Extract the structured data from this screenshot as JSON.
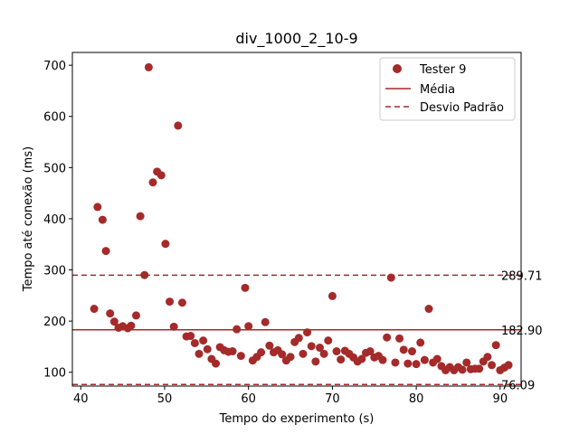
{
  "chart_data": {
    "type": "scatter",
    "title": "div_1000_2_10-9",
    "xlabel": "Tempo do experimento (s)",
    "ylabel": "Tempo até conexão (ms)",
    "xlim": [
      39,
      92.5
    ],
    "ylim": [
      73,
      725
    ],
    "xticks": [
      40,
      50,
      60,
      70,
      80,
      90
    ],
    "yticks": [
      100,
      200,
      300,
      400,
      500,
      600,
      700
    ],
    "grid": false,
    "legend_position": "top-right",
    "series": [
      {
        "name": "Tester 9",
        "color": "#a52a2a",
        "points": [
          [
            41.6,
            224
          ],
          [
            42.0,
            423
          ],
          [
            42.6,
            398
          ],
          [
            43.0,
            337
          ],
          [
            43.5,
            215
          ],
          [
            44.0,
            199
          ],
          [
            44.5,
            187
          ],
          [
            45.0,
            190
          ],
          [
            45.6,
            186
          ],
          [
            46.0,
            191
          ],
          [
            46.6,
            211
          ],
          [
            47.1,
            405
          ],
          [
            47.6,
            290
          ],
          [
            48.1,
            696
          ],
          [
            48.6,
            471
          ],
          [
            49.1,
            492
          ],
          [
            49.6,
            485
          ],
          [
            50.1,
            351
          ],
          [
            50.6,
            238
          ],
          [
            51.1,
            189
          ],
          [
            51.6,
            582
          ],
          [
            52.1,
            236
          ],
          [
            52.6,
            170
          ],
          [
            53.1,
            171
          ],
          [
            53.6,
            157
          ],
          [
            54.1,
            136
          ],
          [
            54.6,
            162
          ],
          [
            55.1,
            145
          ],
          [
            55.6,
            126
          ],
          [
            56.1,
            117
          ],
          [
            56.6,
            149
          ],
          [
            57.1,
            143
          ],
          [
            57.6,
            140
          ],
          [
            58.1,
            141
          ],
          [
            58.6,
            184
          ],
          [
            59.1,
            132
          ],
          [
            59.6,
            265
          ],
          [
            60.0,
            190
          ],
          [
            60.5,
            123
          ],
          [
            61.0,
            130
          ],
          [
            61.5,
            139
          ],
          [
            62.0,
            198
          ],
          [
            62.5,
            152
          ],
          [
            63.0,
            139
          ],
          [
            63.5,
            143
          ],
          [
            64.0,
            135
          ],
          [
            64.5,
            123
          ],
          [
            65.0,
            130
          ],
          [
            65.5,
            159
          ],
          [
            66.0,
            167
          ],
          [
            66.5,
            136
          ],
          [
            67.0,
            178
          ],
          [
            67.5,
            151
          ],
          [
            68.0,
            121
          ],
          [
            68.5,
            148
          ],
          [
            69.0,
            136
          ],
          [
            69.5,
            162
          ],
          [
            70.0,
            249
          ],
          [
            70.5,
            141
          ],
          [
            71.0,
            125
          ],
          [
            71.5,
            142
          ],
          [
            72.0,
            136
          ],
          [
            72.5,
            129
          ],
          [
            73.0,
            121
          ],
          [
            73.5,
            126
          ],
          [
            74.0,
            138
          ],
          [
            74.5,
            141
          ],
          [
            75.0,
            129
          ],
          [
            75.5,
            132
          ],
          [
            76.0,
            124
          ],
          [
            76.5,
            168
          ],
          [
            77.0,
            285
          ],
          [
            77.5,
            119
          ],
          [
            78.0,
            166
          ],
          [
            78.5,
            144
          ],
          [
            79.0,
            117
          ],
          [
            79.5,
            141
          ],
          [
            80.0,
            116
          ],
          [
            80.5,
            158
          ],
          [
            81.0,
            124
          ],
          [
            81.5,
            224
          ],
          [
            82.0,
            119
          ],
          [
            82.5,
            126
          ],
          [
            83.0,
            112
          ],
          [
            83.5,
            104
          ],
          [
            84.0,
            110
          ],
          [
            84.5,
            104
          ],
          [
            85.0,
            110
          ],
          [
            85.5,
            105
          ],
          [
            86.0,
            119
          ],
          [
            86.5,
            106
          ],
          [
            87.0,
            107
          ],
          [
            87.5,
            107
          ],
          [
            88.0,
            121
          ],
          [
            88.5,
            130
          ],
          [
            89.0,
            114
          ],
          [
            89.5,
            153
          ],
          [
            90.0,
            104
          ],
          [
            90.5,
            109
          ],
          [
            91.0,
            114
          ]
        ]
      }
    ],
    "reference_lines": [
      {
        "name": "Média",
        "value": 182.9,
        "label": "182.90",
        "style": "solid",
        "color": "#a52a2a"
      },
      {
        "name": "Desvio Padrão",
        "value": 289.71,
        "label": "289.71",
        "style": "dashed",
        "color": "#a52a2a"
      },
      {
        "value": 76.09,
        "label": "76.09",
        "style": "dashed",
        "color": "#a52a2a"
      }
    ],
    "legend": [
      "Tester 9",
      "Média",
      "Desvio Padrão"
    ]
  }
}
